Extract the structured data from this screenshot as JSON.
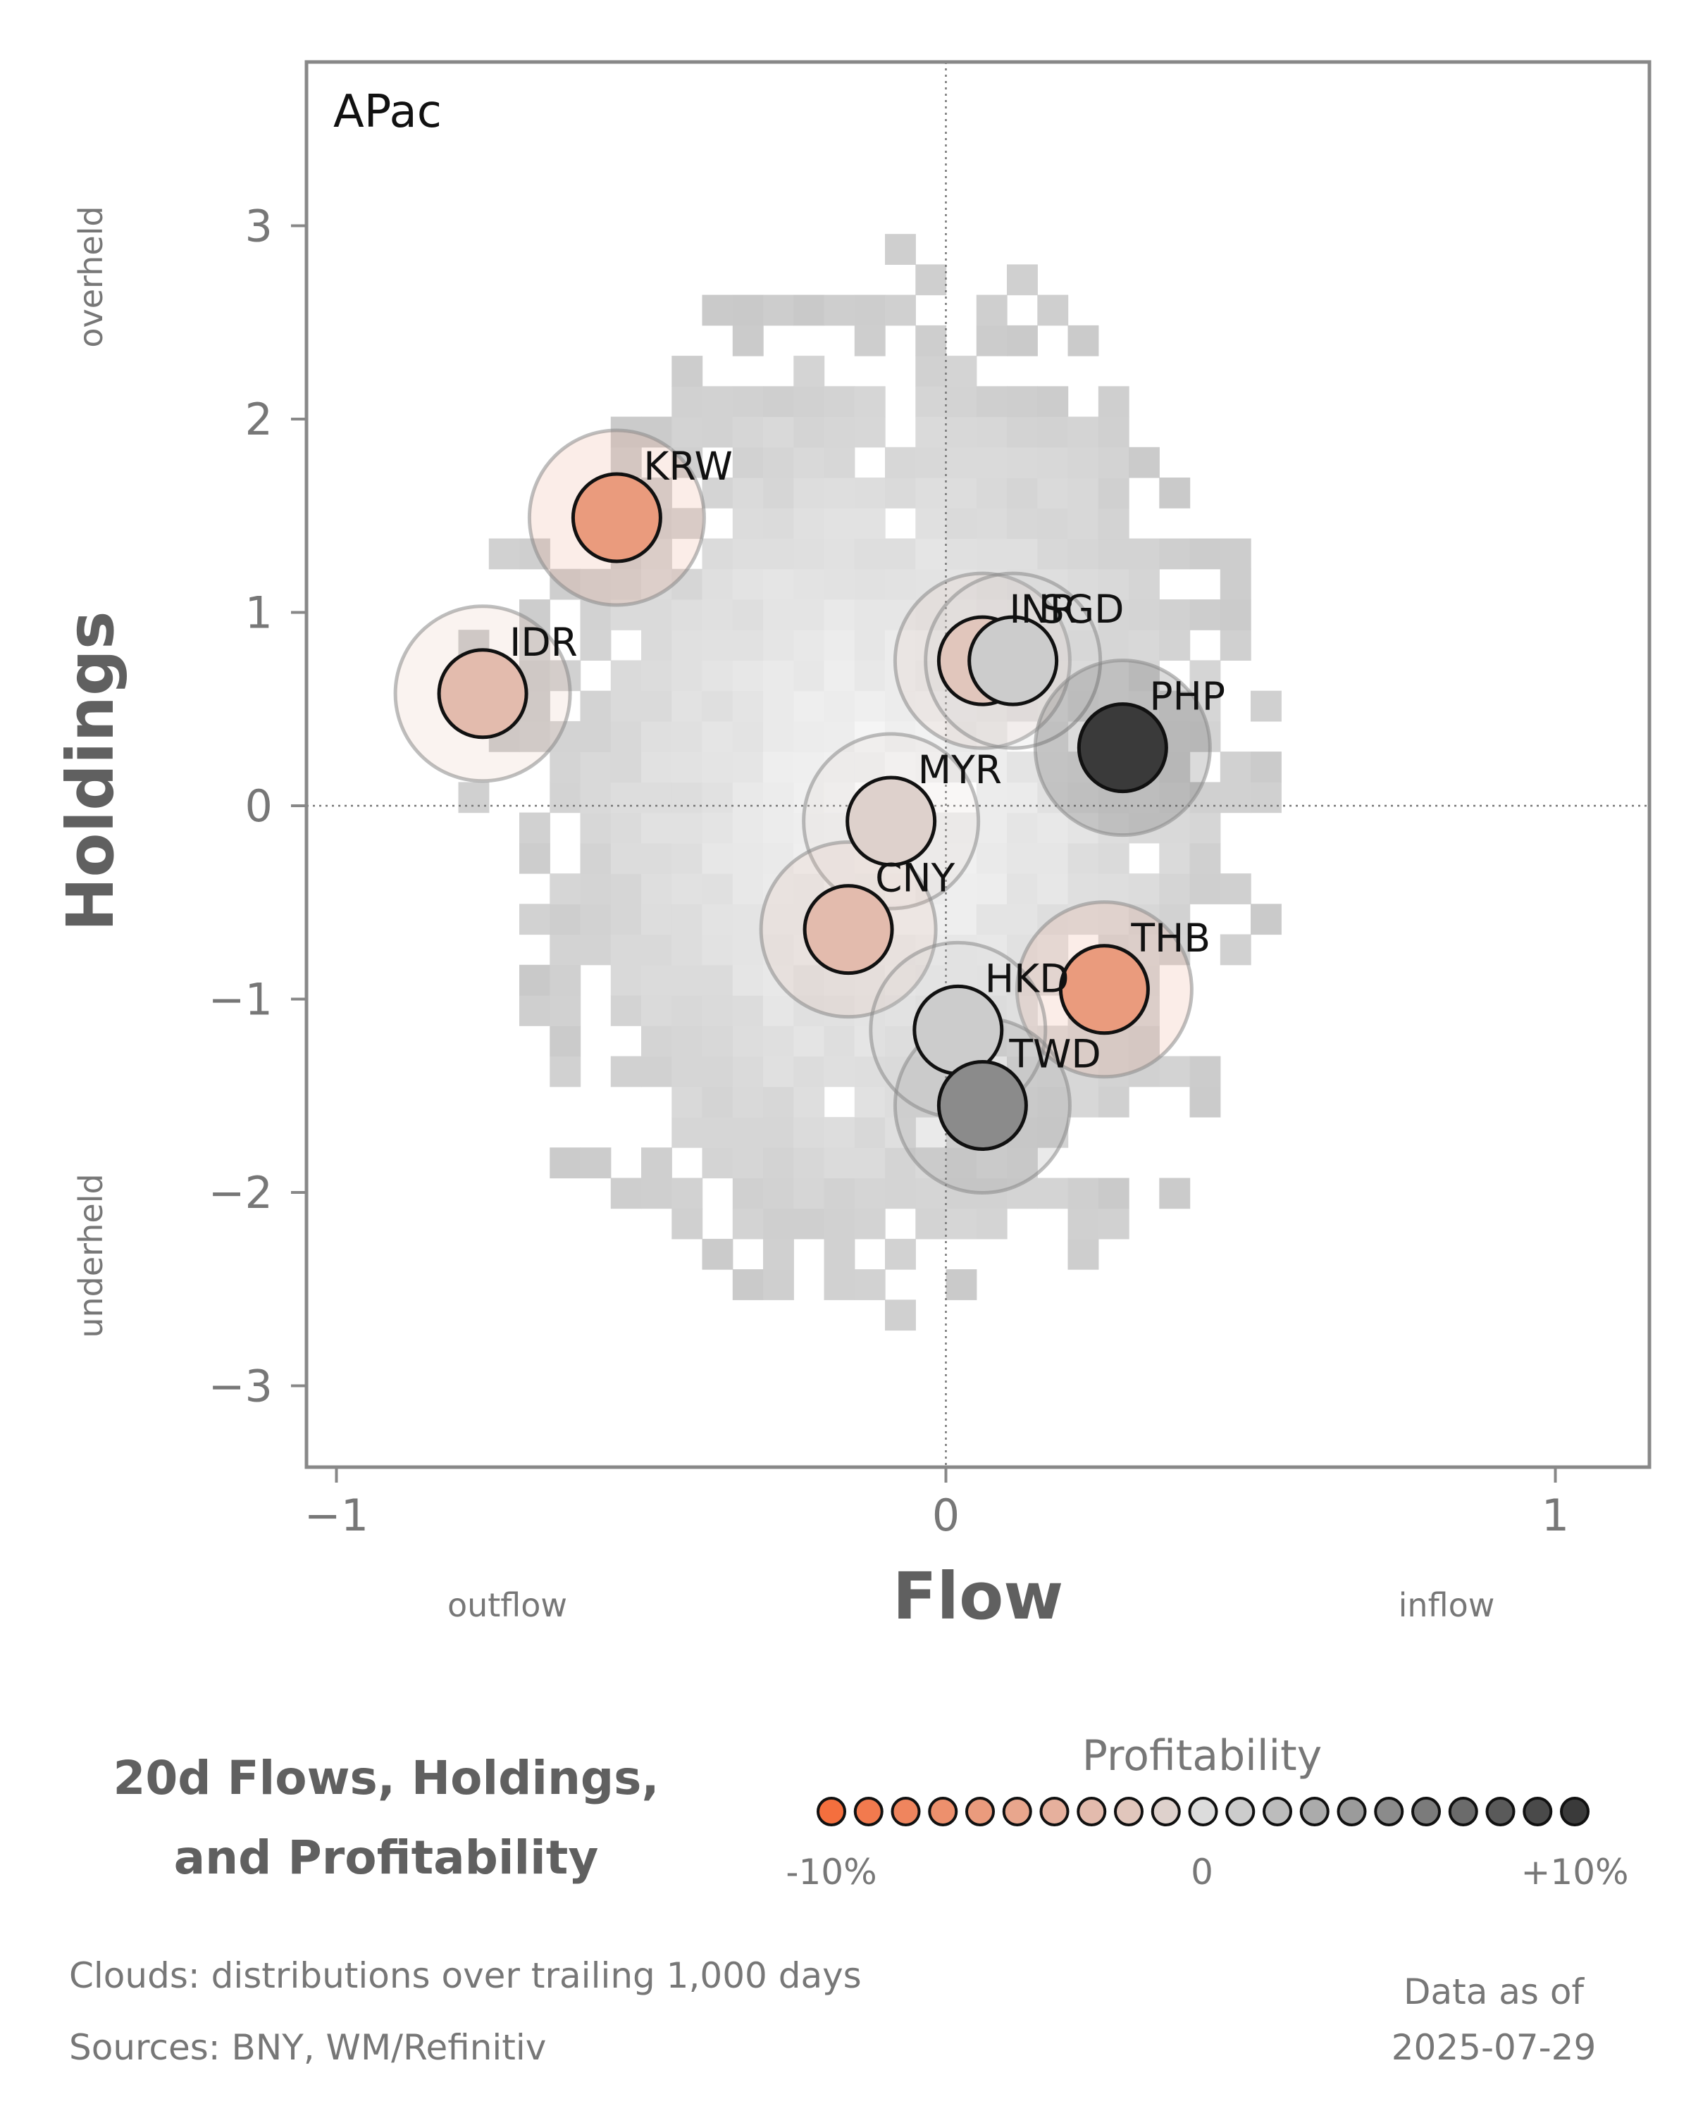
{
  "chart_data": {
    "type": "scatter",
    "panel_label": "APac",
    "xlabel": "Flow",
    "ylabel": "Holdings",
    "xlim": [
      -1.05,
      1.15
    ],
    "ylim": [
      -3.4,
      3.85
    ],
    "x_ticks": [
      {
        "value": -1,
        "label": "−1"
      },
      {
        "value": 0,
        "label": "0"
      },
      {
        "value": 1,
        "label": "1"
      }
    ],
    "y_ticks": [
      {
        "value": 3,
        "label": "3"
      },
      {
        "value": 2,
        "label": "2"
      },
      {
        "value": 1,
        "label": "1"
      },
      {
        "value": 0,
        "label": "0"
      },
      {
        "value": -1,
        "label": "−1"
      },
      {
        "value": -2,
        "label": "−2"
      },
      {
        "value": -3,
        "label": "−3"
      }
    ],
    "x_side_labels": {
      "left": "outflow",
      "right": "inflow"
    },
    "y_side_labels": {
      "top": "overheld",
      "bottom": "underheld"
    },
    "reference_lines": {
      "x": 0,
      "y": 0,
      "style": "dotted"
    },
    "grid": false,
    "background": "heatmap of trailing 1,000-day flow/holdings distributions (gray cloud)",
    "series": [
      {
        "label": "KRW",
        "x": -0.54,
        "y": 1.49,
        "profitability": -0.06
      },
      {
        "label": "IDR",
        "x": -0.76,
        "y": 0.58,
        "profitability": -0.03
      },
      {
        "label": "INR",
        "x": 0.06,
        "y": 0.75,
        "profitability": -0.02
      },
      {
        "label": "SGD",
        "x": 0.11,
        "y": 0.75,
        "profitability": 0.01
      },
      {
        "label": "PHP",
        "x": 0.29,
        "y": 0.3,
        "profitability": 0.1
      },
      {
        "label": "MYR",
        "x": -0.09,
        "y": -0.08,
        "profitability": -0.01
      },
      {
        "label": "CNY",
        "x": -0.16,
        "y": -0.64,
        "profitability": -0.03
      },
      {
        "label": "THB",
        "x": 0.26,
        "y": -0.95,
        "profitability": -0.06
      },
      {
        "label": "HKD",
        "x": 0.02,
        "y": -1.16,
        "profitability": 0.01
      },
      {
        "label": "TWD",
        "x": 0.06,
        "y": -1.55,
        "profitability": 0.05
      }
    ],
    "color_scale": {
      "title": "Profitability",
      "min_label": "-10%",
      "mid_label": "0",
      "max_label": "+10%",
      "min_color": "#f46f3e",
      "mid_color": "#dcdcdc",
      "max_color": "#3a3a3a",
      "steps": 21
    }
  },
  "title": {
    "line1": "20d Flows, Holdings,",
    "line2": "and Profitability"
  },
  "footer": {
    "clouds_note": "Clouds:  distributions over trailing 1,000 days",
    "sources": "Sources:  BNY, WM/Refinitiv",
    "asof_label": "Data as of",
    "asof_date": "2025-07-29"
  }
}
